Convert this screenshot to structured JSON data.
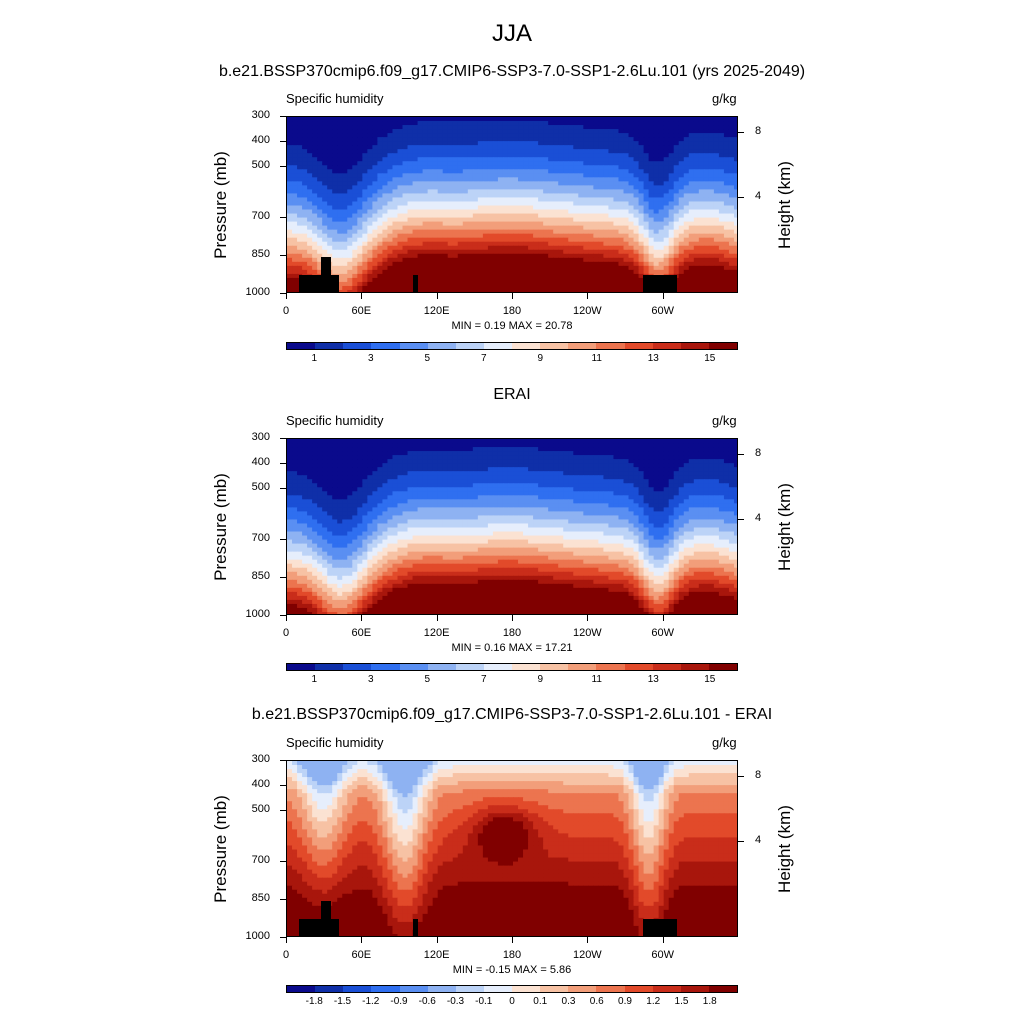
{
  "title": "JJA",
  "panels": [
    {
      "title": "b.e21.BSSP370cmip6.f09_g17.CMIP6-SSP3-7.0-SSP1-2.6Lu.101 (yrs 2025-2049)",
      "left_label": "Specific humidity",
      "right_label": "g/kg",
      "stats": "MIN =   0.19  MAX =  20.78"
    },
    {
      "title": "ERAI",
      "left_label": "Specific humidity",
      "right_label": "g/kg",
      "stats": "MIN =   0.16  MAX =  17.21"
    },
    {
      "title": "b.e21.BSSP370cmip6.f09_g17.CMIP6-SSP3-7.0-SSP1-2.6Lu.101 - ERAI",
      "left_label": "Specific humidity",
      "right_label": "g/kg",
      "stats": "MIN =  -0.15  MAX =   5.86"
    }
  ],
  "colors": {
    "abs_scale": [
      "#0a0a8c",
      "#0f2fa8",
      "#1a4fd6",
      "#2f6ff0",
      "#5a8ff2",
      "#8eb2f2",
      "#bcd3f7",
      "#e6eefc",
      "#fbe2d2",
      "#f7c2a4",
      "#f29e7a",
      "#ec744f",
      "#e24a2a",
      "#c92d1a",
      "#a8160c",
      "#800000"
    ],
    "diff_scale": [
      "#0a0a8c",
      "#0f2fa8",
      "#1a4fd6",
      "#2f6ff0",
      "#5a8ff2",
      "#8eb2f2",
      "#bcd3f7",
      "#e6eefc",
      "#fbe2d2",
      "#f7c2a4",
      "#f29e7a",
      "#ec744f",
      "#e24a2a",
      "#c92d1a",
      "#a8160c",
      "#800000"
    ]
  },
  "chart_data": [
    {
      "type": "heatmap",
      "title": "b.e21.BSSP370cmip6.f09_g17.CMIP6-SSP3-7.0-SSP1-2.6Lu.101 (yrs 2025-2049)",
      "ylabel": "Pressure (mb)",
      "y2label": "Height (km)",
      "x_ticks": [
        "0",
        "60E",
        "120E",
        "180",
        "120W",
        "60W"
      ],
      "y_ticks": [
        "300",
        "400",
        "500",
        "700",
        "850",
        "1000"
      ],
      "y2_ticks": [
        "8",
        "4"
      ],
      "xlim": [
        0,
        360
      ],
      "ylim": [
        1000,
        300
      ],
      "colorbar_labels": [
        "1",
        "3",
        "5",
        "7",
        "9",
        "11",
        "13",
        "15"
      ],
      "min": 0.19,
      "max": 20.78,
      "units": "g/kg"
    },
    {
      "type": "heatmap",
      "title": "ERAI",
      "ylabel": "Pressure (mb)",
      "y2label": "Height (km)",
      "x_ticks": [
        "0",
        "60E",
        "120E",
        "180",
        "120W",
        "60W"
      ],
      "y_ticks": [
        "300",
        "400",
        "500",
        "700",
        "850",
        "1000"
      ],
      "y2_ticks": [
        "8",
        "4"
      ],
      "xlim": [
        0,
        360
      ],
      "ylim": [
        1000,
        300
      ],
      "colorbar_labels": [
        "1",
        "3",
        "5",
        "7",
        "9",
        "11",
        "13",
        "15"
      ],
      "min": 0.16,
      "max": 17.21,
      "units": "g/kg"
    },
    {
      "type": "heatmap",
      "title": "b.e21.BSSP370cmip6.f09_g17.CMIP6-SSP3-7.0-SSP1-2.6Lu.101 - ERAI",
      "ylabel": "Pressure (mb)",
      "y2label": "Height (km)",
      "x_ticks": [
        "0",
        "60E",
        "120E",
        "180",
        "120W",
        "60W"
      ],
      "y_ticks": [
        "300",
        "400",
        "500",
        "700",
        "850",
        "1000"
      ],
      "y2_ticks": [
        "8",
        "4"
      ],
      "xlim": [
        0,
        360
      ],
      "ylim": [
        1000,
        300
      ],
      "colorbar_labels": [
        "-1.8",
        "-1.5",
        "-1.2",
        "-0.9",
        "-0.6",
        "-0.3",
        "-0.1",
        "0",
        "0.1",
        "0.3",
        "0.6",
        "0.9",
        "1.2",
        "1.5",
        "1.8"
      ],
      "min": -0.15,
      "max": 5.86,
      "units": "g/kg"
    }
  ]
}
